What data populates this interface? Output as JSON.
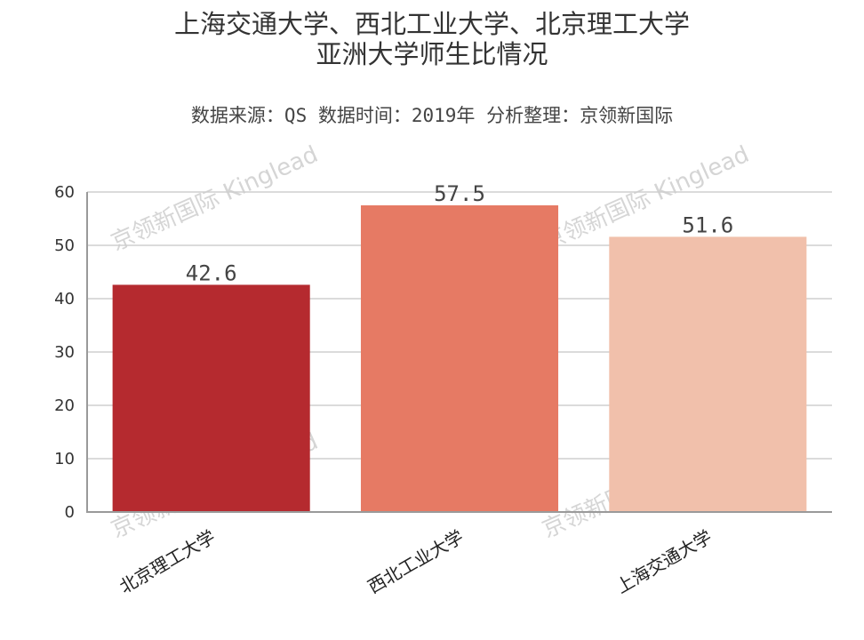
{
  "chart_data": {
    "type": "bar",
    "title": "上海交通大学、西北工业大学、北京理工大学\n亚洲大学师生比情况",
    "subtitle": "数据来源：QS 数据时间：2019年 分析整理：京领新国际",
    "categories": [
      "北京理工大学",
      "西北工业大学",
      "上海交通大学"
    ],
    "values": [
      42.6,
      57.5,
      51.6
    ],
    "value_labels": [
      "42.6",
      "57.5",
      "51.6"
    ],
    "colors": [
      "#b52a2f",
      "#e67a64",
      "#f1c0ab"
    ],
    "xlabel": "",
    "ylabel": "",
    "ylim": [
      0,
      60
    ],
    "yticks": [
      0,
      10,
      20,
      30,
      40,
      50,
      60
    ],
    "grid": true,
    "legend": "none"
  },
  "watermark": "京领新国际 Kinglead"
}
